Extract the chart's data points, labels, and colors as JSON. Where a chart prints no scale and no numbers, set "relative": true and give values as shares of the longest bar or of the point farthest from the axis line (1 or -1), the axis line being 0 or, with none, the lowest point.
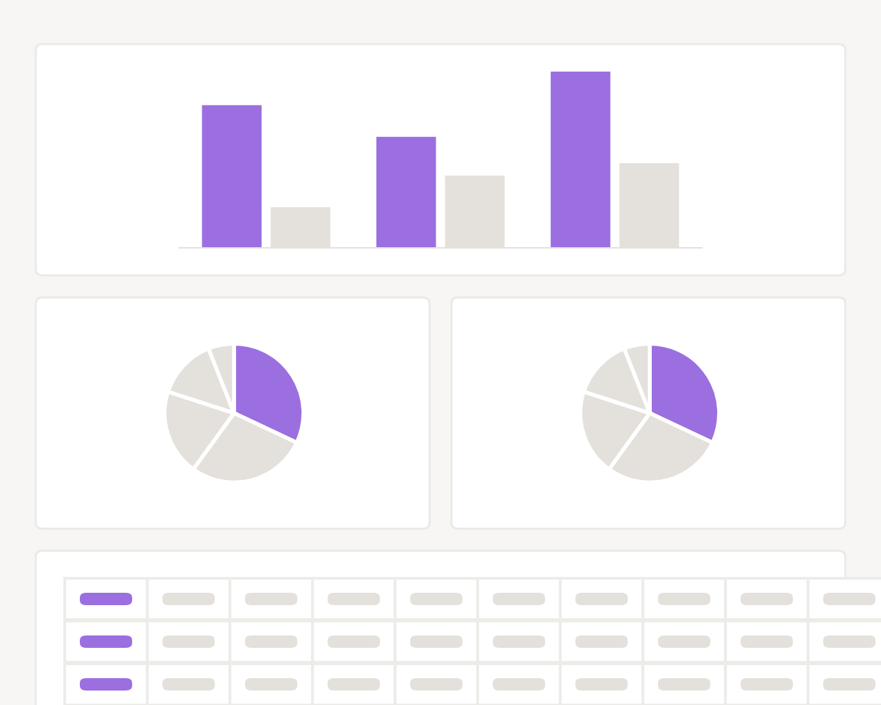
{
  "chart_data": [
    {
      "type": "bar",
      "relative": true,
      "categories": [
        null,
        null,
        null
      ],
      "series": [
        {
          "color": "#9b6fe0",
          "values": [
            0.81,
            0.63,
            1
          ]
        },
        {
          "color": "#e4e1dc",
          "values": [
            0.23,
            0.41,
            0.48
          ]
        }
      ]
    },
    {
      "type": "pie",
      "categories": [
        null,
        null,
        null,
        null,
        null
      ],
      "values": [
        32,
        28,
        20,
        14,
        6
      ],
      "colors": [
        "#9b6fe0",
        "#e4e1dc",
        "#e4e1dc",
        "#e4e1dc",
        "#e4e1dc"
      ]
    },
    {
      "type": "pie",
      "categories": [
        null,
        null,
        null,
        null,
        null
      ],
      "values": [
        32,
        28,
        20,
        14,
        6
      ],
      "colors": [
        "#9b6fe0",
        "#e4e1dc",
        "#e4e1dc",
        "#e4e1dc",
        "#e4e1dc"
      ]
    }
  ]
}
